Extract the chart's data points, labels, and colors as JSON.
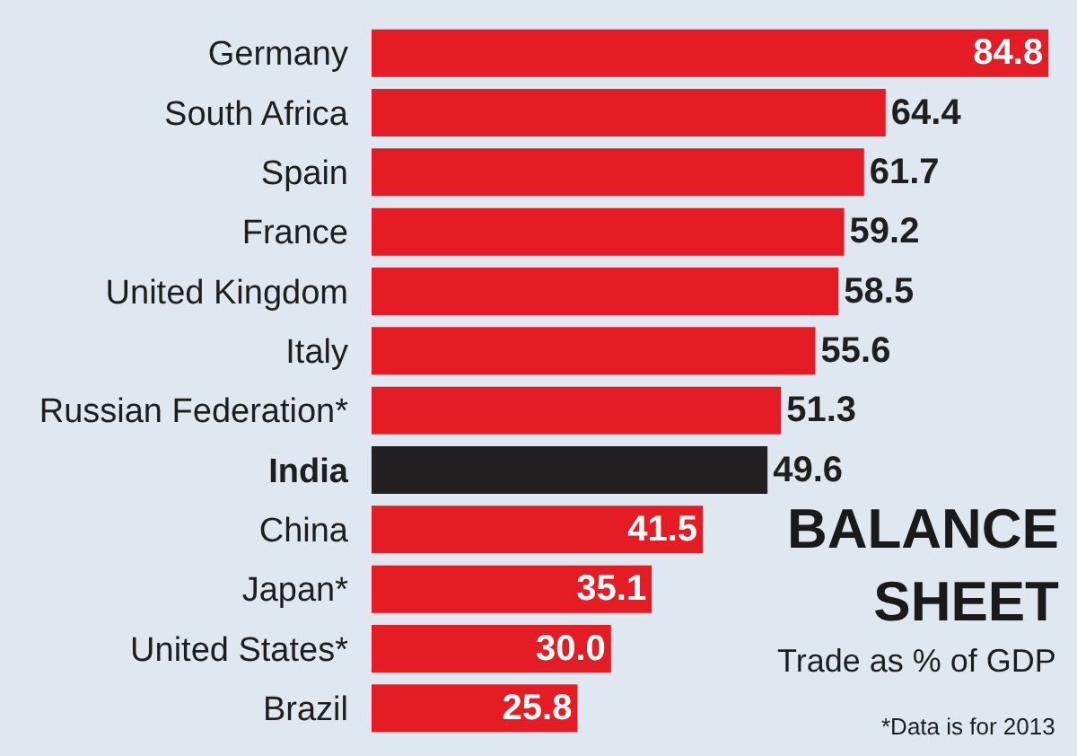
{
  "chart_data": {
    "type": "bar",
    "orientation": "horizontal",
    "title": "BALANCE SHEET",
    "subtitle": "Trade as % of GDP",
    "annotations": [
      "*Data is for 2013"
    ],
    "categories": [
      "Germany",
      "South Africa",
      "Spain",
      "France",
      "United Kingdom",
      "Italy",
      "Russian Federation*",
      "India",
      "China",
      "Japan*",
      "United States*",
      "Brazil"
    ],
    "values": [
      84.8,
      64.4,
      61.7,
      59.2,
      58.5,
      55.6,
      51.3,
      49.6,
      41.5,
      35.1,
      30.0,
      25.8
    ],
    "value_labels": [
      "84.8",
      "64.4",
      "61.7",
      "59.2",
      "58.5",
      "55.6",
      "51.3",
      "49.6",
      "41.5",
      "35.1",
      "30.0",
      "25.8"
    ],
    "colors": [
      "#e61c24",
      "#e61c24",
      "#e61c24",
      "#e61c24",
      "#e61c24",
      "#e61c24",
      "#e61c24",
      "#231f20",
      "#e61c24",
      "#e61c24",
      "#e61c24",
      "#e61c24"
    ],
    "xlim": [
      0,
      85
    ],
    "tick_labels": "y"
  }
}
